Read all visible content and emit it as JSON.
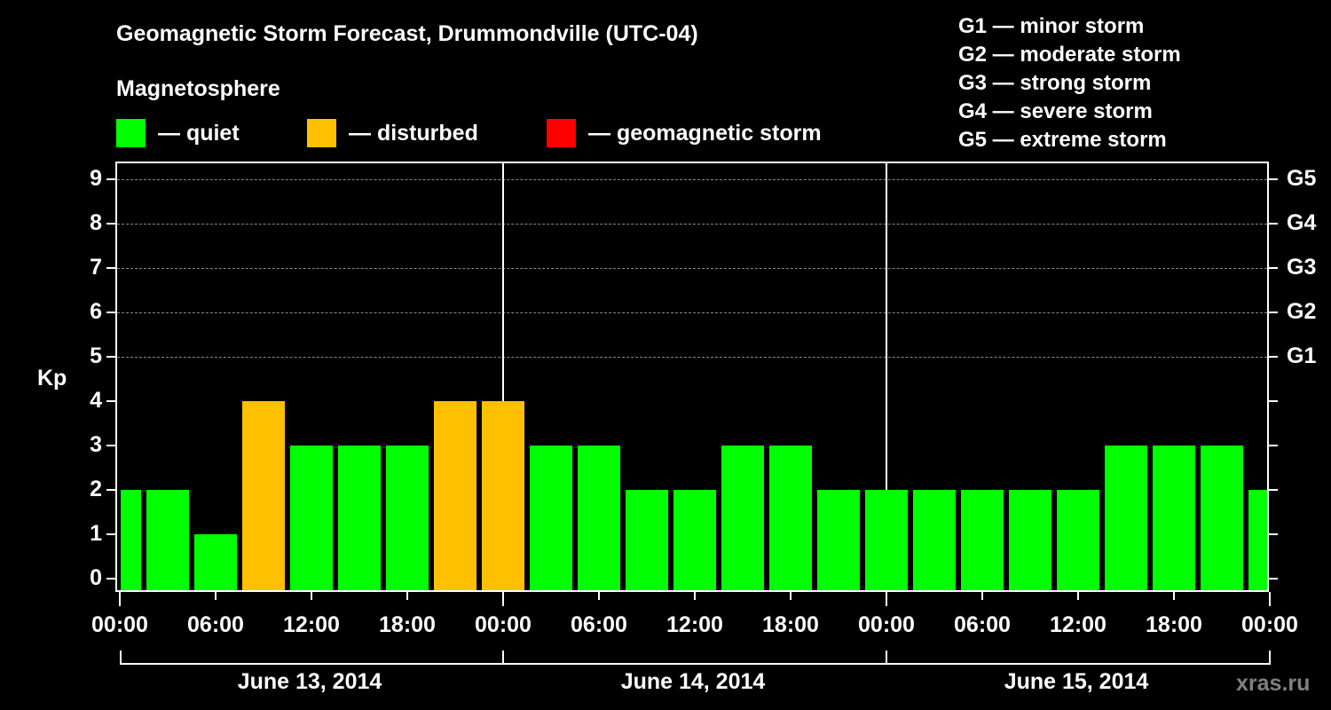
{
  "header": {
    "title": "Geomagnetic Storm Forecast, Drummondville (UTC-04)",
    "subtitle": "Magnetosphere"
  },
  "legend": [
    {
      "label": "— quiet",
      "color": "#00ff00"
    },
    {
      "label": "— disturbed",
      "color": "#ffc000"
    },
    {
      "label": "— geomagnetic storm",
      "color": "#ff0000"
    }
  ],
  "g_scale_legend": [
    "G1 — minor storm",
    "G2 — moderate storm",
    "G3 — strong storm",
    "G4 — severe storm",
    "G5 — extreme storm"
  ],
  "axes": {
    "ylabel": "Kp",
    "yticks": [
      "0",
      "1",
      "2",
      "3",
      "4",
      "5",
      "6",
      "7",
      "8",
      "9"
    ],
    "right_labels": [
      {
        "kp": 5,
        "label": "G1"
      },
      {
        "kp": 6,
        "label": "G2"
      },
      {
        "kp": 7,
        "label": "G3"
      },
      {
        "kp": 8,
        "label": "G4"
      },
      {
        "kp": 9,
        "label": "G5"
      }
    ],
    "xticks": [
      "00:00",
      "06:00",
      "12:00",
      "18:00",
      "00:00",
      "06:00",
      "12:00",
      "18:00",
      "00:00",
      "06:00",
      "12:00",
      "18:00",
      "00:00"
    ],
    "dates": [
      "June 13, 2014",
      "June 14, 2014",
      "June 15, 2014"
    ]
  },
  "watermark": "xras.ru",
  "chart_data": {
    "type": "bar",
    "title": "Geomagnetic Storm Forecast, Drummondville (UTC-04)",
    "subtitle": "Magnetosphere",
    "xlabel": "",
    "ylabel": "Kp",
    "ylim": [
      0,
      9
    ],
    "grid": "dashed horizontal lines at Kp 5–9",
    "legend_position": "top",
    "x": [
      "06-13 00:00",
      "06-13 03:00",
      "06-13 06:00",
      "06-13 09:00",
      "06-13 12:00",
      "06-13 15:00",
      "06-13 18:00",
      "06-13 21:00",
      "06-14 00:00",
      "06-14 03:00",
      "06-14 06:00",
      "06-14 09:00",
      "06-14 12:00",
      "06-14 15:00",
      "06-14 18:00",
      "06-14 21:00",
      "06-15 00:00",
      "06-15 03:00",
      "06-15 06:00",
      "06-15 09:00",
      "06-15 12:00",
      "06-15 15:00",
      "06-15 18:00",
      "06-15 21:00",
      "06-16 00:00"
    ],
    "values": [
      2,
      2,
      1,
      4,
      3,
      3,
      3,
      4,
      4,
      3,
      3,
      2,
      2,
      3,
      3,
      2,
      2,
      2,
      2,
      2,
      2,
      3,
      3,
      3,
      2
    ],
    "status": [
      "quiet",
      "quiet",
      "quiet",
      "disturbed",
      "quiet",
      "quiet",
      "quiet",
      "disturbed",
      "disturbed",
      "quiet",
      "quiet",
      "quiet",
      "quiet",
      "quiet",
      "quiet",
      "quiet",
      "quiet",
      "quiet",
      "quiet",
      "quiet",
      "quiet",
      "quiet",
      "quiet",
      "quiet",
      "quiet"
    ],
    "colors": {
      "quiet": "#00ff00",
      "disturbed": "#ffc000",
      "storm": "#ff0000"
    },
    "right_axis": {
      "5": "G1",
      "6": "G2",
      "7": "G3",
      "8": "G4",
      "9": "G5"
    },
    "day_labels": [
      "June 13, 2014",
      "June 14, 2014",
      "June 15, 2014"
    ]
  }
}
